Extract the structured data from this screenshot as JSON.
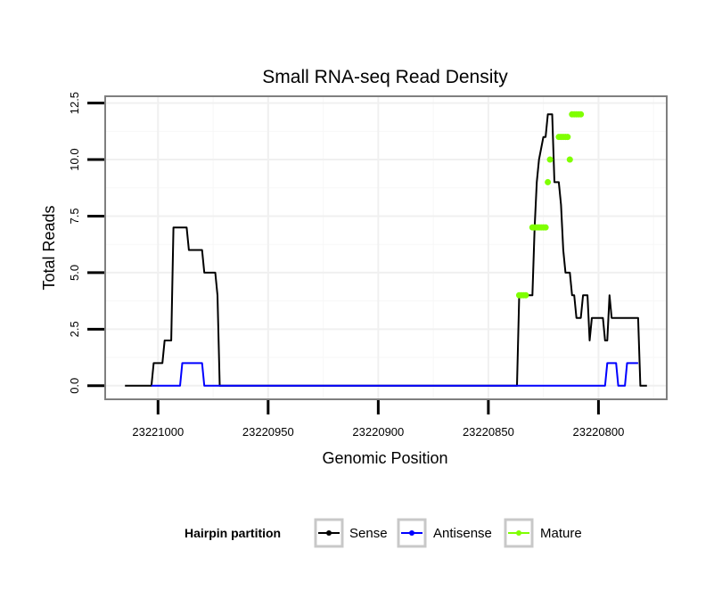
{
  "chart_data": {
    "type": "line",
    "title": "Small RNA-seq Read Density",
    "xlabel": "Genomic Position",
    "ylabel": "Total Reads",
    "x_reversed": true,
    "xlim": [
      23221024,
      23220769
    ],
    "ylim": [
      -0.6,
      12.8
    ],
    "x_ticks": [
      23221000,
      23220950,
      23220900,
      23220850,
      23220800
    ],
    "x_tick_labels": [
      "23221000",
      "23220950",
      "23220900",
      "23220850",
      "23220800"
    ],
    "y_ticks": [
      0,
      2.5,
      5,
      7.5,
      10,
      12.5
    ],
    "y_tick_labels": [
      "0.0",
      "2.5",
      "5.0",
      "7.5",
      "10.0",
      "12.5"
    ],
    "grid": true,
    "legend": {
      "title": "Hairpin partition",
      "position": "bottom",
      "entries": [
        "Sense",
        "Antisense",
        "Mature"
      ]
    },
    "colors": {
      "Sense": "#000000",
      "Antisense": "#0000ff",
      "Mature": "#7fff00"
    },
    "series": [
      {
        "name": "Sense",
        "x": [
          23221015,
          23221003,
          23221002,
          23220998,
          23220997,
          23220994,
          23220993,
          23220987,
          23220986,
          23220980,
          23220979,
          23220974,
          23220973,
          23220972,
          23220972,
          23220837,
          23220836,
          23220830,
          23220829,
          23220828,
          23220827,
          23220825,
          23220824,
          23220823,
          23220821,
          23220820,
          23220818,
          23220817,
          23220816,
          23220815,
          23220813,
          23220812,
          23220811,
          23220810,
          23220808,
          23220807,
          23220805,
          23220804,
          23220803,
          23220798,
          23220797,
          23220796,
          23220795,
          23220794,
          23220793,
          23220792,
          23220782,
          23220781,
          23220778
        ],
        "y": [
          0,
          0,
          1,
          1,
          2,
          2,
          7,
          7,
          6,
          6,
          5,
          5,
          4,
          0,
          0,
          0,
          4,
          4,
          7,
          9,
          10,
          11,
          11,
          12,
          12,
          9,
          9,
          8,
          6,
          5,
          5,
          4,
          4,
          3,
          3,
          4,
          4,
          2,
          3,
          3,
          2,
          2,
          4,
          3,
          3,
          3,
          3,
          0,
          0
        ]
      },
      {
        "name": "Antisense",
        "x": [
          23221003,
          23220990,
          23220989,
          23220980,
          23220979,
          23220797,
          23220796,
          23220792,
          23220791,
          23220788,
          23220787,
          23220782
        ],
        "y": [
          0,
          0,
          1,
          1,
          0,
          0,
          1,
          1,
          0,
          0,
          1,
          1
        ]
      },
      {
        "name": "Mature",
        "x": [
          23220836,
          23220835,
          23220834,
          23220833,
          23220830,
          23220829,
          23220828,
          23220827,
          23220826,
          23220825,
          23220824,
          23220823,
          23220822,
          23220818,
          23220817,
          23220816,
          23220815,
          23220814,
          23220813,
          23220812,
          23220811,
          23220810,
          23220809,
          23220808
        ],
        "y": [
          4,
          4,
          4,
          4,
          7,
          7,
          7,
          7,
          7,
          7,
          7,
          9,
          10,
          11,
          11,
          11,
          11,
          11,
          10,
          12,
          12,
          12,
          12,
          12
        ]
      }
    ]
  }
}
